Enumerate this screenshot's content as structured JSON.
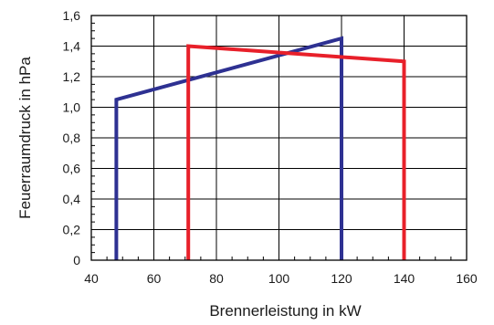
{
  "chart_data": {
    "type": "line",
    "title": "",
    "xlabel": "Brennerleistung in kW",
    "ylabel": "Feuerraumdruck in hPa",
    "xlim": [
      40,
      160
    ],
    "ylim": [
      0,
      1.6
    ],
    "x_ticks": [
      40,
      60,
      80,
      100,
      120,
      140,
      160
    ],
    "y_ticks": [
      0,
      0.2,
      0.4,
      0.6,
      0.8,
      1.0,
      1.2,
      1.4,
      1.6
    ],
    "x_tick_labels": [
      "40",
      "60",
      "80",
      "100",
      "120",
      "140",
      "160"
    ],
    "y_tick_labels": [
      "0",
      "0,2",
      "0,4",
      "0,6",
      "0,8",
      "1,0",
      "1,2",
      "1,4",
      "1,6"
    ],
    "grid": true,
    "legend": "none",
    "series": [
      {
        "color": "#2e3192",
        "points": [
          [
            48,
            0
          ],
          [
            48,
            1.05
          ],
          [
            120,
            1.45
          ],
          [
            120,
            0
          ]
        ]
      },
      {
        "color": "#e8202a",
        "points": [
          [
            71,
            0
          ],
          [
            71,
            1.4
          ],
          [
            140,
            1.3
          ],
          [
            140,
            0
          ]
        ]
      }
    ]
  }
}
